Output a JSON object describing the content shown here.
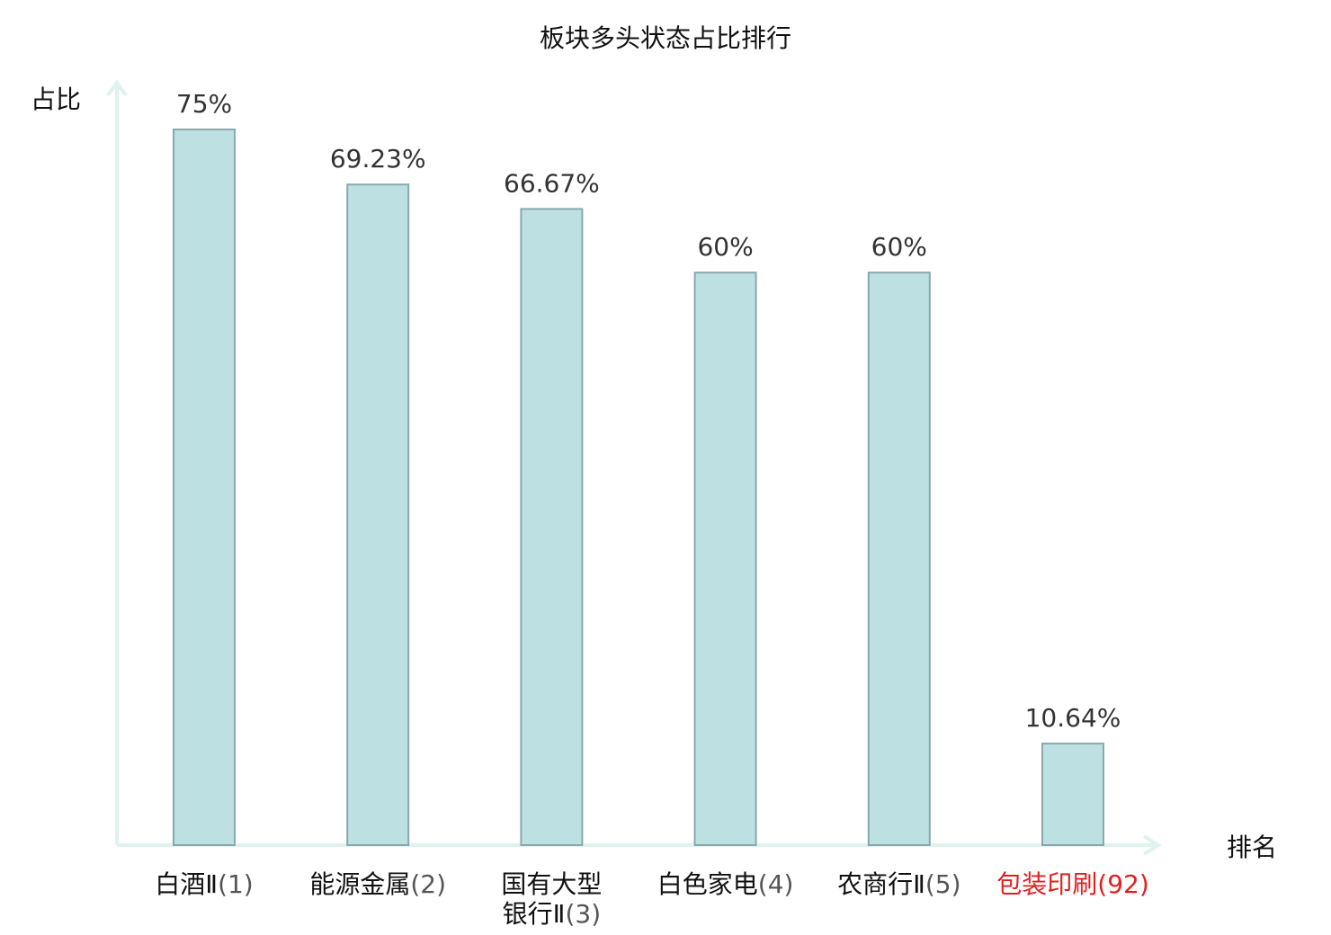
{
  "chart_data": {
    "type": "bar",
    "title": "板块多头状态占比排行",
    "ylabel": "占比",
    "xlabel": "排名",
    "ylim": [
      0,
      80
    ],
    "grid": false,
    "categories": [
      {
        "name_lines": [
          "白酒Ⅱ"
        ],
        "rank": "(1)",
        "highlight": false
      },
      {
        "name_lines": [
          "能源金属"
        ],
        "rank": "(2)",
        "highlight": false
      },
      {
        "name_lines": [
          "国有大型",
          "银行Ⅱ"
        ],
        "rank": "(3)",
        "highlight": false
      },
      {
        "name_lines": [
          "白色家电"
        ],
        "rank": "(4)",
        "highlight": false
      },
      {
        "name_lines": [
          "农商行Ⅱ"
        ],
        "rank": "(5)",
        "highlight": false
      },
      {
        "name_lines": [
          "包装印刷"
        ],
        "rank": "(92)",
        "highlight": true
      }
    ],
    "values": [
      75,
      69.23,
      66.67,
      60,
      60,
      10.64
    ],
    "value_labels": [
      "75%",
      "69.23%",
      "66.67%",
      "60%",
      "60%",
      "10.64%"
    ],
    "colors": {
      "bar_fill": "#bde0e3",
      "bar_stroke": "#8aa8ab",
      "axis": "#dff2ef",
      "highlight": "#e02020"
    }
  }
}
